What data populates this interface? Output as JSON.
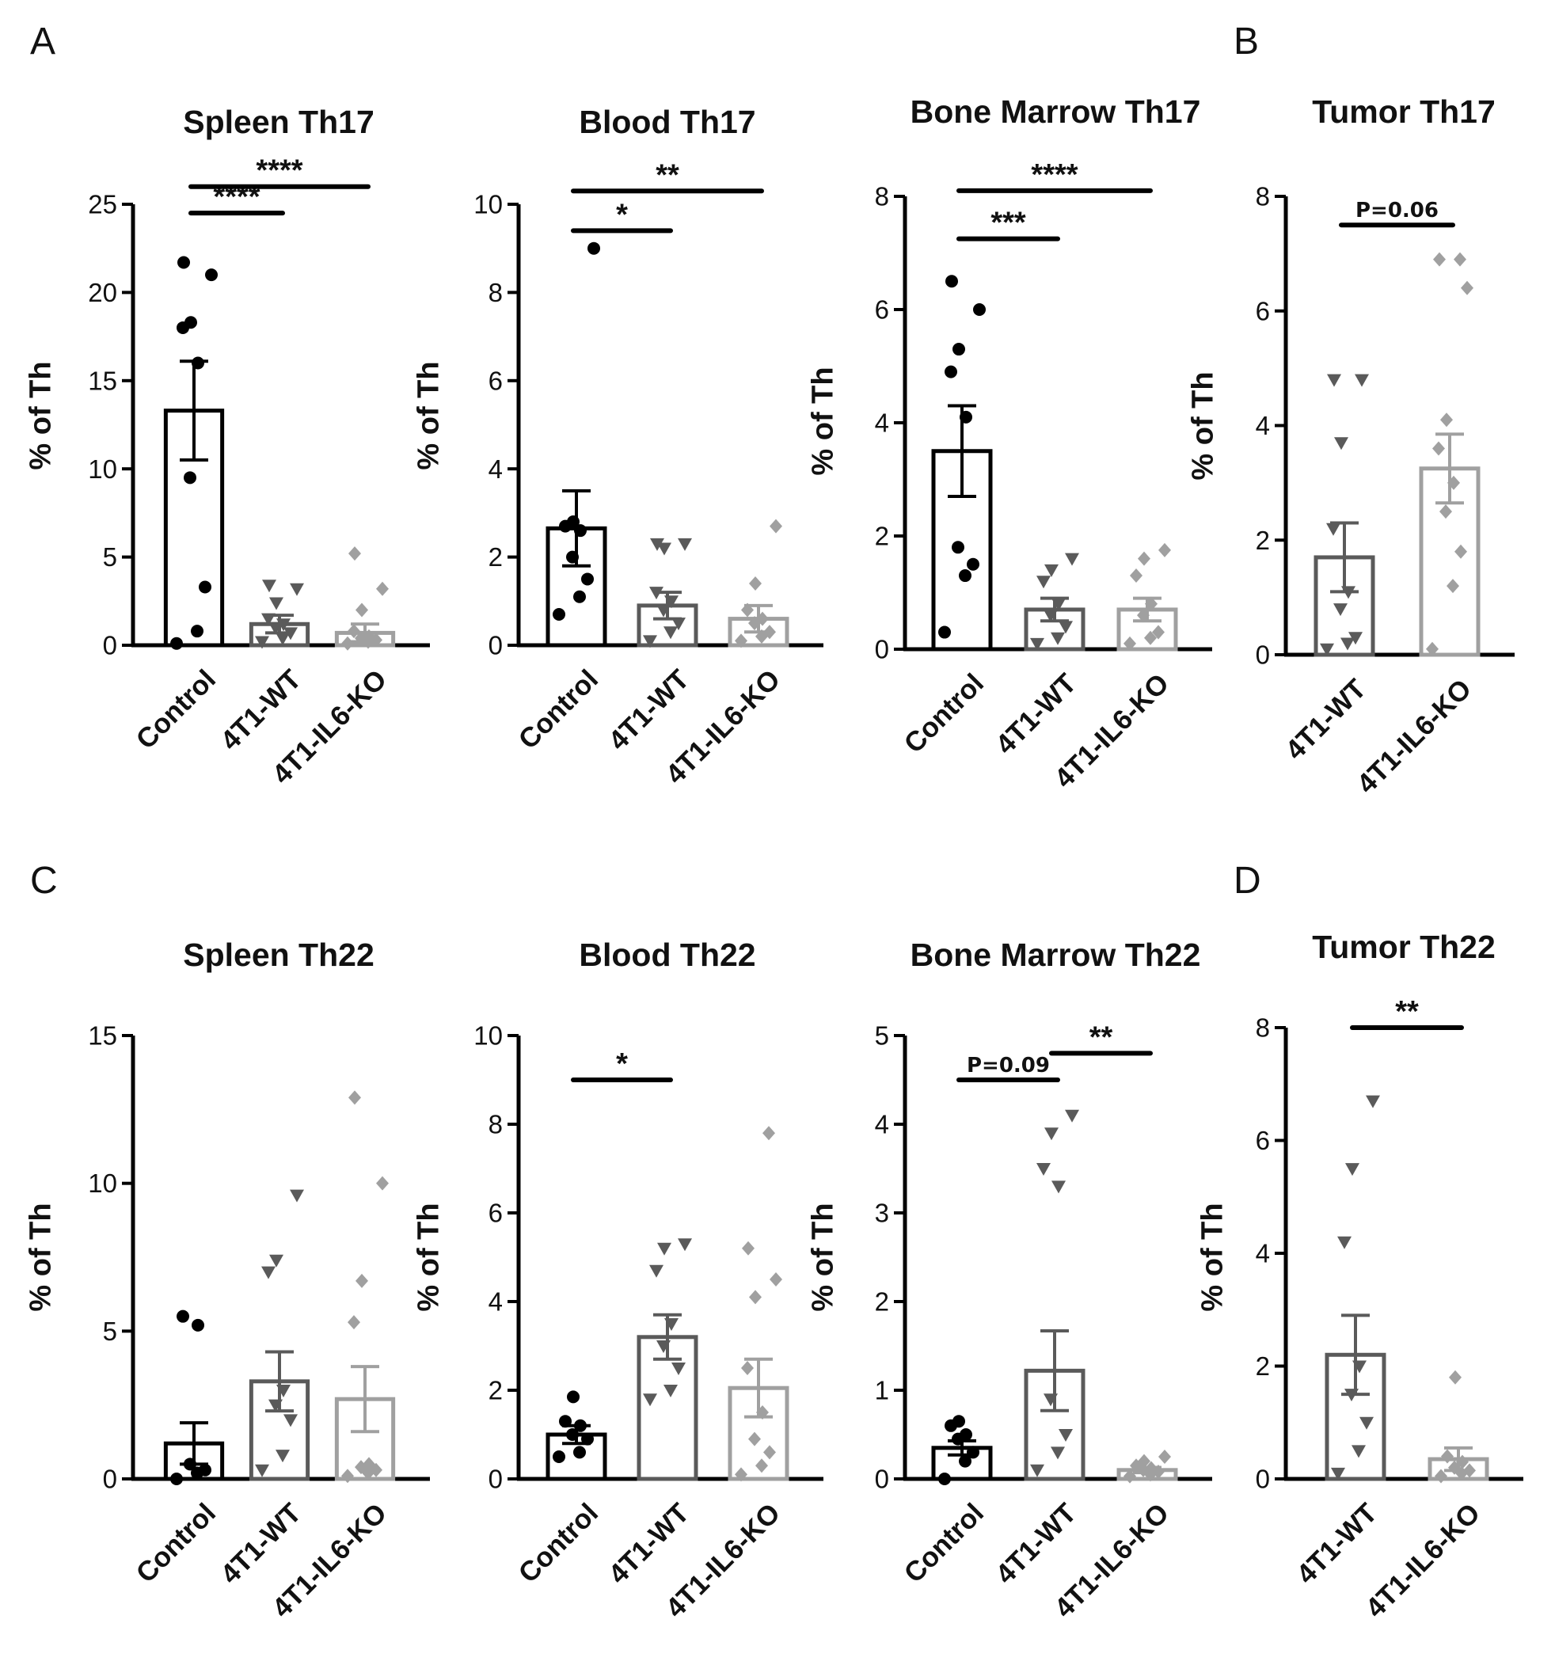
{
  "panel_letters": [
    "A",
    "B",
    "C",
    "D"
  ],
  "chart_data": [
    {
      "type": "bar",
      "title": "Spleen Th17",
      "ylabel": "% of Th",
      "xlabel": "",
      "ylim": [
        0,
        25
      ],
      "yticks": [
        0,
        5,
        10,
        15,
        20,
        25
      ],
      "categories": [
        "Control",
        "4T1-WT",
        "4T1-IL6-KO"
      ],
      "series": [
        {
          "name": "Control",
          "color": "#000000",
          "marker": "circle",
          "mean": 13.3,
          "sem": 2.8,
          "points": [
            0.1,
            0.8,
            3.3,
            9.5,
            16.0,
            18.0,
            18.3,
            21.0,
            21.7
          ]
        },
        {
          "name": "4T1-WT",
          "color": "#5a5a5a",
          "marker": "triangle-down",
          "mean": 1.2,
          "sem": 0.5,
          "points": [
            0.2,
            0.4,
            0.7,
            1.0,
            1.2,
            1.5,
            2.4,
            3.2,
            3.4
          ]
        },
        {
          "name": "4T1-IL6-KO",
          "color": "#a0a0a0",
          "marker": "diamond",
          "mean": 0.7,
          "sem": 0.5,
          "points": [
            0.1,
            0.2,
            0.3,
            0.4,
            0.5,
            0.8,
            2.0,
            3.2,
            5.2
          ]
        }
      ],
      "significance": [
        {
          "from": "Control",
          "to": "4T1-WT",
          "label": "****",
          "y": 24.5
        },
        {
          "from": "Control",
          "to": "4T1-IL6-KO",
          "label": "****",
          "y": 26.0
        }
      ]
    },
    {
      "type": "bar",
      "title": "Blood Th17",
      "ylabel": "% of Th",
      "xlabel": "",
      "ylim": [
        0,
        10
      ],
      "yticks": [
        0,
        2,
        4,
        6,
        8,
        10
      ],
      "categories": [
        "Control",
        "4T1-WT",
        "4T1-IL6-KO"
      ],
      "series": [
        {
          "name": "Control",
          "color": "#000000",
          "marker": "circle",
          "mean": 2.65,
          "sem": 0.85,
          "points": [
            0.7,
            1.1,
            1.5,
            2.0,
            2.6,
            2.7,
            2.8,
            9.0
          ]
        },
        {
          "name": "4T1-WT",
          "color": "#5a5a5a",
          "marker": "triangle-down",
          "mean": 0.9,
          "sem": 0.3,
          "points": [
            0.1,
            0.3,
            0.5,
            0.8,
            1.0,
            1.2,
            2.2,
            2.3,
            2.3
          ]
        },
        {
          "name": "4T1-IL6-KO",
          "color": "#a0a0a0",
          "marker": "diamond",
          "mean": 0.6,
          "sem": 0.3,
          "points": [
            0.1,
            0.2,
            0.3,
            0.5,
            0.6,
            0.8,
            1.4,
            2.7
          ]
        }
      ],
      "significance": [
        {
          "from": "Control",
          "to": "4T1-WT",
          "label": "*",
          "y": 9.4
        },
        {
          "from": "Control",
          "to": "4T1-IL6-KO",
          "label": "**",
          "y": 10.3
        }
      ]
    },
    {
      "type": "bar",
      "title": "Bone Marrow Th17",
      "ylabel": "% of Th",
      "xlabel": "",
      "ylim": [
        0,
        8
      ],
      "yticks": [
        0,
        2,
        4,
        6,
        8
      ],
      "categories": [
        "Control",
        "4T1-WT",
        "4T1-IL6-KO"
      ],
      "series": [
        {
          "name": "Control",
          "color": "#000000",
          "marker": "circle",
          "mean": 3.5,
          "sem": 0.8,
          "points": [
            0.3,
            1.3,
            1.5,
            1.8,
            4.1,
            4.9,
            5.3,
            6.0,
            6.5
          ]
        },
        {
          "name": "4T1-WT",
          "color": "#5a5a5a",
          "marker": "triangle-down",
          "mean": 0.7,
          "sem": 0.2,
          "points": [
            0.1,
            0.2,
            0.4,
            0.6,
            0.8,
            1.2,
            1.4,
            1.6
          ]
        },
        {
          "name": "4T1-IL6-KO",
          "color": "#a0a0a0",
          "marker": "diamond",
          "mean": 0.7,
          "sem": 0.2,
          "points": [
            0.1,
            0.2,
            0.3,
            0.6,
            0.8,
            1.3,
            1.6,
            1.75
          ]
        }
      ],
      "significance": [
        {
          "from": "Control",
          "to": "4T1-WT",
          "label": "***",
          "y": 7.25
        },
        {
          "from": "Control",
          "to": "4T1-IL6-KO",
          "label": "****",
          "y": 8.1
        }
      ]
    },
    {
      "type": "bar",
      "title": "Tumor Th17",
      "ylabel": "% of Th",
      "xlabel": "",
      "ylim": [
        0,
        8
      ],
      "yticks": [
        0,
        2,
        4,
        6,
        8
      ],
      "categories": [
        "4T1-WT",
        "4T1-IL6-KO"
      ],
      "series": [
        {
          "name": "4T1-WT",
          "color": "#5a5a5a",
          "marker": "triangle-down",
          "mean": 1.7,
          "sem": 0.6,
          "points": [
            0.1,
            0.2,
            0.3,
            0.8,
            1.1,
            2.2,
            3.7,
            4.8,
            4.8
          ]
        },
        {
          "name": "4T1-IL6-KO",
          "color": "#a0a0a0",
          "marker": "diamond",
          "mean": 3.25,
          "sem": 0.6,
          "points": [
            0.1,
            1.2,
            1.8,
            2.5,
            3.0,
            3.6,
            4.1,
            6.4,
            6.9,
            6.9
          ]
        }
      ],
      "significance": [
        {
          "from": "4T1-WT",
          "to": "4T1-IL6-KO",
          "label": "P=0.06",
          "y": 7.5
        }
      ]
    },
    {
      "type": "bar",
      "title": "Spleen Th22",
      "ylabel": "% of Th",
      "xlabel": "",
      "ylim": [
        0,
        15
      ],
      "yticks": [
        0,
        5,
        10,
        15
      ],
      "categories": [
        "Control",
        "4T1-WT",
        "4T1-IL6-KO"
      ],
      "series": [
        {
          "name": "Control",
          "color": "#000000",
          "marker": "circle",
          "mean": 1.2,
          "sem": 0.7,
          "points": [
            0.0,
            0.2,
            0.3,
            0.5,
            5.2,
            5.5
          ]
        },
        {
          "name": "4T1-WT",
          "color": "#5a5a5a",
          "marker": "triangle-down",
          "mean": 3.3,
          "sem": 1.0,
          "points": [
            0.3,
            0.8,
            2.0,
            2.5,
            3.0,
            7.0,
            7.4,
            9.6
          ]
        },
        {
          "name": "4T1-IL6-KO",
          "color": "#a0a0a0",
          "marker": "diamond",
          "mean": 2.7,
          "sem": 1.1,
          "points": [
            0.1,
            0.2,
            0.3,
            0.4,
            0.5,
            5.3,
            6.7,
            10.0,
            12.9
          ]
        }
      ],
      "significance": []
    },
    {
      "type": "bar",
      "title": "Blood Th22",
      "ylabel": "% of Th",
      "xlabel": "",
      "ylim": [
        0,
        10
      ],
      "yticks": [
        0,
        2,
        4,
        6,
        8,
        10
      ],
      "categories": [
        "Control",
        "4T1-WT",
        "4T1-IL6-KO"
      ],
      "series": [
        {
          "name": "Control",
          "color": "#000000",
          "marker": "circle",
          "mean": 1.0,
          "sem": 0.2,
          "points": [
            0.5,
            0.6,
            0.9,
            1.0,
            1.2,
            1.3,
            1.85
          ]
        },
        {
          "name": "4T1-WT",
          "color": "#5a5a5a",
          "marker": "triangle-down",
          "mean": 3.2,
          "sem": 0.5,
          "points": [
            1.8,
            2.0,
            2.5,
            3.0,
            3.5,
            4.7,
            5.2,
            5.3
          ]
        },
        {
          "name": "4T1-IL6-KO",
          "color": "#a0a0a0",
          "marker": "diamond",
          "mean": 2.05,
          "sem": 0.65,
          "points": [
            0.1,
            0.3,
            0.6,
            0.9,
            1.5,
            2.5,
            4.1,
            4.5,
            5.2,
            7.8
          ]
        }
      ],
      "significance": [
        {
          "from": "Control",
          "to": "4T1-WT",
          "label": "*",
          "y": 9.0
        }
      ]
    },
    {
      "type": "bar",
      "title": "Bone Marrow Th22",
      "ylabel": "% of Th",
      "xlabel": "",
      "ylim": [
        0,
        5
      ],
      "yticks": [
        0,
        1,
        2,
        3,
        4,
        5
      ],
      "categories": [
        "Control",
        "4T1-WT",
        "4T1-IL6-KO"
      ],
      "series": [
        {
          "name": "Control",
          "color": "#000000",
          "marker": "circle",
          "mean": 0.35,
          "sem": 0.08,
          "points": [
            0.0,
            0.2,
            0.3,
            0.45,
            0.5,
            0.6,
            0.65
          ]
        },
        {
          "name": "4T1-WT",
          "color": "#5a5a5a",
          "marker": "triangle-down",
          "mean": 1.22,
          "sem": 0.45,
          "points": [
            0.1,
            0.3,
            0.5,
            0.9,
            3.3,
            3.5,
            3.9,
            4.1
          ]
        },
        {
          "name": "4T1-IL6-KO",
          "color": "#a0a0a0",
          "marker": "diamond",
          "mean": 0.1,
          "sem": 0.03,
          "points": [
            0.03,
            0.05,
            0.08,
            0.1,
            0.12,
            0.15,
            0.2,
            0.25
          ]
        }
      ],
      "significance": [
        {
          "from": "Control",
          "to": "4T1-WT",
          "label": "P=0.09",
          "y": 4.5
        },
        {
          "from": "4T1-WT",
          "to": "4T1-IL6-KO",
          "label": "**",
          "y": 4.8
        }
      ]
    },
    {
      "type": "bar",
      "title": "Tumor Th22",
      "ylabel": "% of Th",
      "xlabel": "",
      "ylim": [
        0,
        8
      ],
      "yticks": [
        0,
        2,
        4,
        6,
        8
      ],
      "categories": [
        "4T1-WT",
        "4T1-IL6-KO"
      ],
      "series": [
        {
          "name": "4T1-WT",
          "color": "#5a5a5a",
          "marker": "triangle-down",
          "mean": 2.2,
          "sem": 0.7,
          "points": [
            0.1,
            0.5,
            1.0,
            1.5,
            2.0,
            4.2,
            5.5,
            6.7
          ]
        },
        {
          "name": "4T1-IL6-KO",
          "color": "#a0a0a0",
          "marker": "diamond",
          "mean": 0.35,
          "sem": 0.2,
          "points": [
            0.05,
            0.1,
            0.15,
            0.2,
            0.3,
            0.4,
            1.8
          ]
        }
      ],
      "significance": [
        {
          "from": "4T1-WT",
          "to": "4T1-IL6-KO",
          "label": "**",
          "y": 8.0
        }
      ]
    }
  ]
}
